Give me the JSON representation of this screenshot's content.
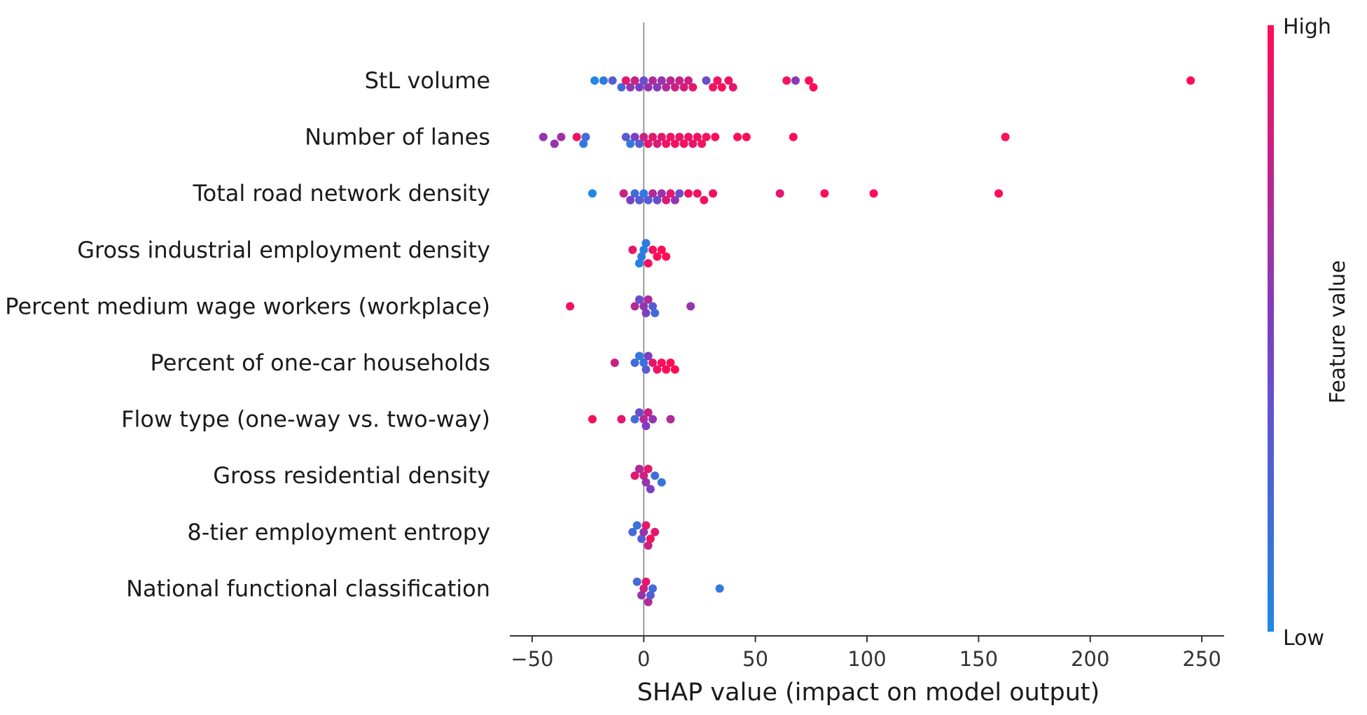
{
  "chart_data": {
    "type": "scatter",
    "subtype": "shap-beeswarm",
    "xlabel": "SHAP value (impact on model output)",
    "xlim": [
      -60,
      260
    ],
    "xticks": [
      -50,
      0,
      50,
      100,
      150,
      200,
      250
    ],
    "colorbar": {
      "label": "Feature value",
      "high_label": "High",
      "low_label": "Low",
      "high_color": "#ff0d57",
      "mid_color": "#7b3fc4",
      "low_color": "#1e88e5"
    },
    "features": [
      {
        "name": "StL volume",
        "points": [
          [
            -22,
            0.0
          ],
          [
            -18,
            0.1
          ],
          [
            -14,
            0.3
          ],
          [
            -10,
            0.2
          ],
          [
            -8,
            0.9
          ],
          [
            -6,
            0.6
          ],
          [
            -4,
            0.8
          ],
          [
            -2,
            0.5
          ],
          [
            0,
            0.4
          ],
          [
            2,
            0.6
          ],
          [
            4,
            0.7
          ],
          [
            6,
            0.55
          ],
          [
            8,
            0.6
          ],
          [
            10,
            0.7
          ],
          [
            12,
            0.75
          ],
          [
            14,
            0.8
          ],
          [
            16,
            0.78
          ],
          [
            18,
            0.85
          ],
          [
            20,
            0.8
          ],
          [
            22,
            0.9
          ],
          [
            28,
            0.4
          ],
          [
            31,
            0.95
          ],
          [
            33,
            0.95
          ],
          [
            35,
            1.0
          ],
          [
            38,
            0.95
          ],
          [
            40,
            0.9
          ],
          [
            64,
            0.95
          ],
          [
            68,
            0.55
          ],
          [
            74,
            1.0
          ],
          [
            76,
            1.0
          ],
          [
            245,
            1.0
          ]
        ]
      },
      {
        "name": "Number of lanes",
        "points": [
          [
            -45,
            0.6
          ],
          [
            -40,
            0.6
          ],
          [
            -37,
            0.65
          ],
          [
            -30,
            0.95
          ],
          [
            -27,
            0.1
          ],
          [
            -26,
            0.2
          ],
          [
            -8,
            0.3
          ],
          [
            -6,
            0.1
          ],
          [
            -4,
            0.5
          ],
          [
            -2,
            0.3
          ],
          [
            0,
            0.8
          ],
          [
            2,
            0.9
          ],
          [
            4,
            0.9
          ],
          [
            6,
            0.85
          ],
          [
            8,
            0.9
          ],
          [
            10,
            0.95
          ],
          [
            12,
            0.95
          ],
          [
            14,
            0.95
          ],
          [
            16,
            0.9
          ],
          [
            18,
            0.95
          ],
          [
            20,
            0.95
          ],
          [
            22,
            0.9
          ],
          [
            24,
            0.95
          ],
          [
            26,
            0.95
          ],
          [
            28,
            0.95
          ],
          [
            32,
            1.0
          ],
          [
            42,
            1.0
          ],
          [
            46,
            1.0
          ],
          [
            67,
            1.0
          ],
          [
            162,
            1.0
          ]
        ]
      },
      {
        "name": "Total road network density",
        "points": [
          [
            -23,
            0.0
          ],
          [
            -9,
            0.8
          ],
          [
            -6,
            0.5
          ],
          [
            -4,
            0.2
          ],
          [
            -2,
            0.3
          ],
          [
            0,
            0.1
          ],
          [
            2,
            0.3
          ],
          [
            4,
            0.7
          ],
          [
            6,
            0.4
          ],
          [
            8,
            0.6
          ],
          [
            10,
            0.85
          ],
          [
            12,
            0.9
          ],
          [
            14,
            0.6
          ],
          [
            16,
            0.4
          ],
          [
            20,
            0.95
          ],
          [
            24,
            0.95
          ],
          [
            27,
            0.95
          ],
          [
            31,
            0.95
          ],
          [
            61,
            0.9
          ],
          [
            81,
            1.0
          ],
          [
            103,
            1.0
          ],
          [
            159,
            1.0
          ]
        ]
      },
      {
        "name": "Gross industrial employment density",
        "points": [
          [
            -5,
            0.9
          ],
          [
            -2,
            0.05
          ],
          [
            -1,
            0.1
          ],
          [
            0,
            0.05
          ],
          [
            1,
            0.1
          ],
          [
            2,
            0.95
          ],
          [
            4,
            0.95
          ],
          [
            6,
            1.0
          ],
          [
            8,
            1.0
          ],
          [
            10,
            1.0
          ]
        ]
      },
      {
        "name": "Percent medium wage workers (workplace)",
        "points": [
          [
            -33,
            0.95
          ],
          [
            -4,
            0.7
          ],
          [
            -2,
            0.4
          ],
          [
            0,
            0.6
          ],
          [
            1,
            0.5
          ],
          [
            2,
            0.7
          ],
          [
            4,
            0.3
          ],
          [
            5,
            0.2
          ],
          [
            21,
            0.6
          ]
        ]
      },
      {
        "name": "Percent of one-car households",
        "points": [
          [
            -13,
            0.8
          ],
          [
            -4,
            0.2
          ],
          [
            -2,
            0.1
          ],
          [
            0,
            0.15
          ],
          [
            1,
            0.3
          ],
          [
            2,
            0.5
          ],
          [
            4,
            0.9
          ],
          [
            6,
            0.95
          ],
          [
            8,
            1.0
          ],
          [
            10,
            1.0
          ],
          [
            12,
            1.0
          ],
          [
            14,
            1.0
          ]
        ]
      },
      {
        "name": "Flow type (one-way vs. two-way)",
        "points": [
          [
            -23,
            0.95
          ],
          [
            -10,
            0.9
          ],
          [
            -4,
            0.2
          ],
          [
            -2,
            0.4
          ],
          [
            0,
            0.7
          ],
          [
            1,
            0.5
          ],
          [
            2,
            0.8
          ],
          [
            4,
            0.6
          ],
          [
            12,
            0.7
          ]
        ]
      },
      {
        "name": "Gross residential density",
        "points": [
          [
            -4,
            0.9
          ],
          [
            -2,
            0.7
          ],
          [
            0,
            0.8
          ],
          [
            1,
            0.6
          ],
          [
            2,
            0.9
          ],
          [
            3,
            0.5
          ],
          [
            5,
            0.2
          ],
          [
            8,
            0.15
          ]
        ]
      },
      {
        "name": "8-tier employment entropy",
        "points": [
          [
            -5,
            0.2
          ],
          [
            -3,
            0.15
          ],
          [
            -1,
            0.3
          ],
          [
            0,
            0.6
          ],
          [
            1,
            0.9
          ],
          [
            2,
            0.8
          ],
          [
            3,
            0.95
          ],
          [
            5,
            0.9
          ]
        ]
      },
      {
        "name": "National functional classification",
        "points": [
          [
            -3,
            0.2
          ],
          [
            -1,
            0.6
          ],
          [
            0,
            0.8
          ],
          [
            1,
            0.9
          ],
          [
            2,
            0.7
          ],
          [
            3,
            0.3
          ],
          [
            4,
            0.2
          ],
          [
            34,
            0.1
          ]
        ]
      }
    ]
  }
}
